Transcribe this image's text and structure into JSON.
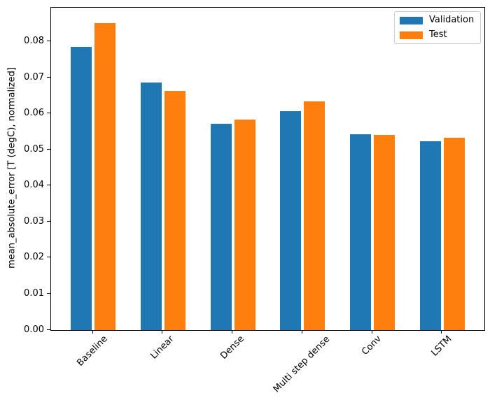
{
  "figure": {
    "background": "#ffffff"
  },
  "chart_data": {
    "type": "bar",
    "title": "",
    "xlabel": "",
    "ylabel": "mean_absolute_error [T (degC), normalized]",
    "categories": [
      "Baseline",
      "Linear",
      "Dense",
      "Multi step dense",
      "Conv",
      "LSTM"
    ],
    "series": [
      {
        "name": "Validation",
        "color": "#1f77b4",
        "values": [
          0.0786,
          0.0687,
          0.0573,
          0.0608,
          0.0544,
          0.0524
        ]
      },
      {
        "name": "Test",
        "color": "#ff7f0e",
        "values": [
          0.0852,
          0.0664,
          0.0584,
          0.0635,
          0.0542,
          0.0534
        ]
      }
    ],
    "ylim": [
      0,
      0.0895
    ],
    "xlim": [
      -0.602,
      5.602
    ],
    "ytick_values": [
      0.0,
      0.01,
      0.02,
      0.03,
      0.04,
      0.05,
      0.06,
      0.07,
      0.08
    ],
    "ytick_labels": [
      "0.00",
      "0.01",
      "0.02",
      "0.03",
      "0.04",
      "0.05",
      "0.06",
      "0.07",
      "0.08"
    ],
    "xtick_rotation": 45,
    "bar_width": 0.3,
    "bar_offset": 0.17,
    "grid": false,
    "legend": {
      "position": "upper right",
      "entries": [
        "Validation",
        "Test"
      ]
    },
    "spine_color": "#000000",
    "text_color": "#000000"
  }
}
